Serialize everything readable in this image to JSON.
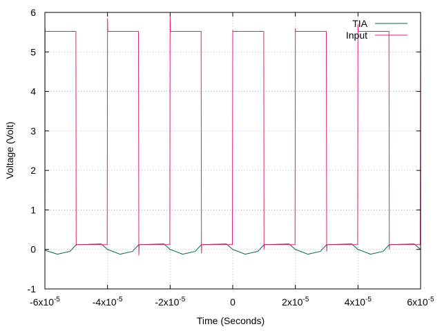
{
  "chart_data": {
    "type": "line",
    "title": "",
    "xlabel": "Time (Seconds)",
    "ylabel": "Voltage (Volt)",
    "xlim": [
      -6e-05,
      6e-05
    ],
    "ylim": [
      -1,
      6
    ],
    "grid": true,
    "legend_position": "top-right",
    "x_ticks": [
      {
        "value": -6e-05,
        "base": "-6x10",
        "exp": "-5"
      },
      {
        "value": -4e-05,
        "base": "-4x10",
        "exp": "-5"
      },
      {
        "value": -2e-05,
        "base": "-2x10",
        "exp": "-5"
      },
      {
        "value": 0,
        "base": "0",
        "exp": ""
      },
      {
        "value": 2e-05,
        "base": "2x10",
        "exp": "-5"
      },
      {
        "value": 4e-05,
        "base": "4x10",
        "exp": "-5"
      },
      {
        "value": 6e-05,
        "base": "6x10",
        "exp": "-5"
      }
    ],
    "y_ticks": [
      {
        "value": -1,
        "label": "-1"
      },
      {
        "value": 0,
        "label": "0"
      },
      {
        "value": 1,
        "label": "1"
      },
      {
        "value": 2,
        "label": "2"
      },
      {
        "value": 3,
        "label": "3"
      },
      {
        "value": 4,
        "label": "4"
      },
      {
        "value": 5,
        "label": "5"
      },
      {
        "value": 6,
        "label": "6"
      }
    ],
    "series": [
      {
        "name": "TIA",
        "color": "#006040",
        "x": [
          -6e-05,
          -5.6e-05,
          -5.2e-05,
          -5e-05,
          -4.6e-05,
          -4.2e-05,
          -4e-05,
          -3.6e-05,
          -3.2e-05,
          -3e-05,
          -2.6e-05,
          -2.2e-05,
          -2e-05,
          -1.6e-05,
          -1.2e-05,
          -1e-05,
          -6e-06,
          -2e-06,
          0,
          4e-06,
          8e-06,
          1e-05,
          1.4e-05,
          1.8e-05,
          2e-05,
          2.4e-05,
          2.8e-05,
          3e-05,
          3.4e-05,
          3.8e-05,
          4e-05,
          4.4e-05,
          4.8e-05,
          5e-05,
          5.4e-05,
          5.8e-05,
          6e-05
        ],
        "values": [
          -0.02,
          -0.12,
          -0.05,
          0.12,
          0.13,
          0.14,
          0.0,
          -0.12,
          -0.05,
          0.12,
          0.13,
          0.14,
          0.0,
          -0.12,
          -0.05,
          0.12,
          0.13,
          0.14,
          0.0,
          -0.12,
          -0.05,
          0.12,
          0.13,
          0.14,
          0.0,
          -0.12,
          -0.05,
          0.12,
          0.13,
          0.14,
          0.0,
          -0.12,
          -0.05,
          0.12,
          0.13,
          0.14,
          0.0
        ]
      },
      {
        "name": "Input",
        "color": "#e0207a",
        "x": [
          -6e-05,
          -5.995e-05,
          -5.99e-05,
          -5.01e-05,
          -5e-05,
          -4.99e-05,
          -4.01e-05,
          -4e-05,
          -3.99e-05,
          -3.01e-05,
          -3e-05,
          -2.99e-05,
          -2.01e-05,
          -2e-05,
          -1.99e-05,
          -1.01e-05,
          -1e-05,
          -9.9e-06,
          -1e-07,
          0,
          1e-07,
          9.9e-06,
          1e-05,
          1.01e-05,
          1.99e-05,
          2e-05,
          2.01e-05,
          2.99e-05,
          3e-05,
          3.01e-05,
          3.99e-05,
          4e-05,
          4.01e-05,
          4.99e-05,
          5e-05,
          5.01e-05,
          5.99e-05,
          6e-05
        ],
        "values": [
          0.05,
          5.6,
          5.52,
          5.52,
          0.1,
          0.12,
          0.12,
          5.85,
          5.52,
          5.52,
          -0.15,
          0.12,
          0.12,
          5.9,
          5.52,
          5.52,
          -0.1,
          0.12,
          0.12,
          5.55,
          5.52,
          5.52,
          0.0,
          0.12,
          0.12,
          5.6,
          5.52,
          5.52,
          -0.05,
          0.12,
          0.12,
          5.7,
          5.52,
          5.52,
          0.0,
          0.12,
          0.12,
          5.75
        ]
      }
    ]
  }
}
